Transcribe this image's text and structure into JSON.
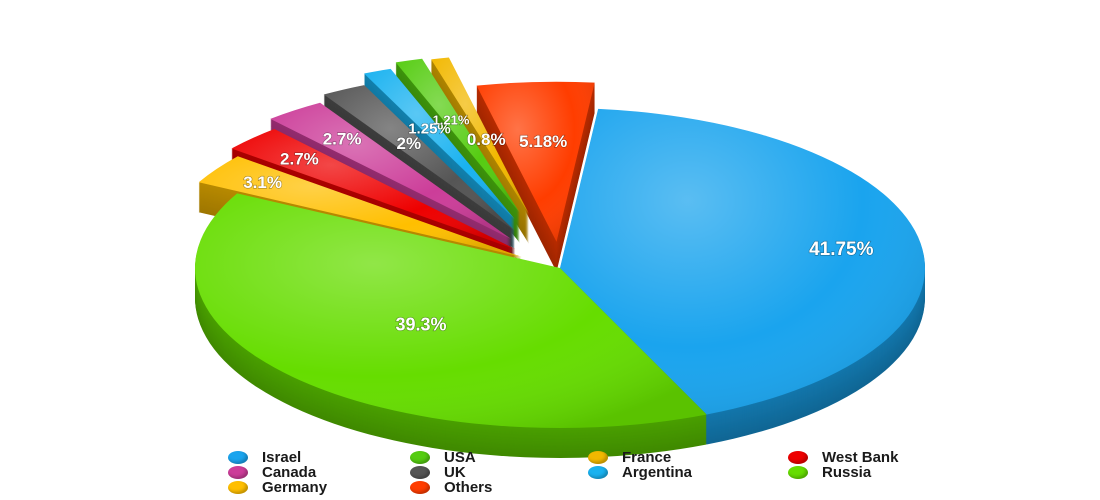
{
  "chart_data": {
    "type": "pie",
    "title": "",
    "slices": [
      {
        "label": "Israel",
        "value": 41.75,
        "display": "41.75%",
        "color": "#1aa4ee"
      },
      {
        "label": "Russia",
        "value": 39.3,
        "display": "39.3%",
        "color": "#66dd00"
      },
      {
        "label": "Germany",
        "value": 3.1,
        "display": "3.1%",
        "color": "#ffbf00"
      },
      {
        "label": "West Bank",
        "value": 2.7,
        "display": "2.7%",
        "color": "#ee0000"
      },
      {
        "label": "Canada",
        "value": 2.7,
        "display": "2.7%",
        "color": "#cc3d99"
      },
      {
        "label": "UK",
        "value": 2,
        "display": "2%",
        "color": "#555555"
      },
      {
        "label": "Argentina",
        "value": 1.25,
        "display": "1.25%",
        "color": "#19b2f0"
      },
      {
        "label": "USA",
        "value": 1.21,
        "display": "1.21%",
        "color": "#55cc11"
      },
      {
        "label": "France",
        "value": 0.8,
        "display": "0.8%",
        "color": "#f2b800"
      },
      {
        "label": "Others",
        "value": 5.18,
        "display": "5.18%",
        "color": "#ff3d00"
      }
    ],
    "legend": {
      "position": "bottom",
      "items": [
        {
          "label": "Israel",
          "color": "#1aa4ee"
        },
        {
          "label": "USA",
          "color": "#55cc11"
        },
        {
          "label": "France",
          "color": "#f2b800"
        },
        {
          "label": "West Bank",
          "color": "#ee0000"
        },
        {
          "label": "Canada",
          "color": "#cc3d99"
        },
        {
          "label": "UK",
          "color": "#555555"
        },
        {
          "label": "Argentina",
          "color": "#19b2f0"
        },
        {
          "label": "Russia",
          "color": "#66dd00"
        },
        {
          "label": "Germany",
          "color": "#ffbf00"
        },
        {
          "label": "Others",
          "color": "#ff3d00"
        }
      ]
    }
  }
}
